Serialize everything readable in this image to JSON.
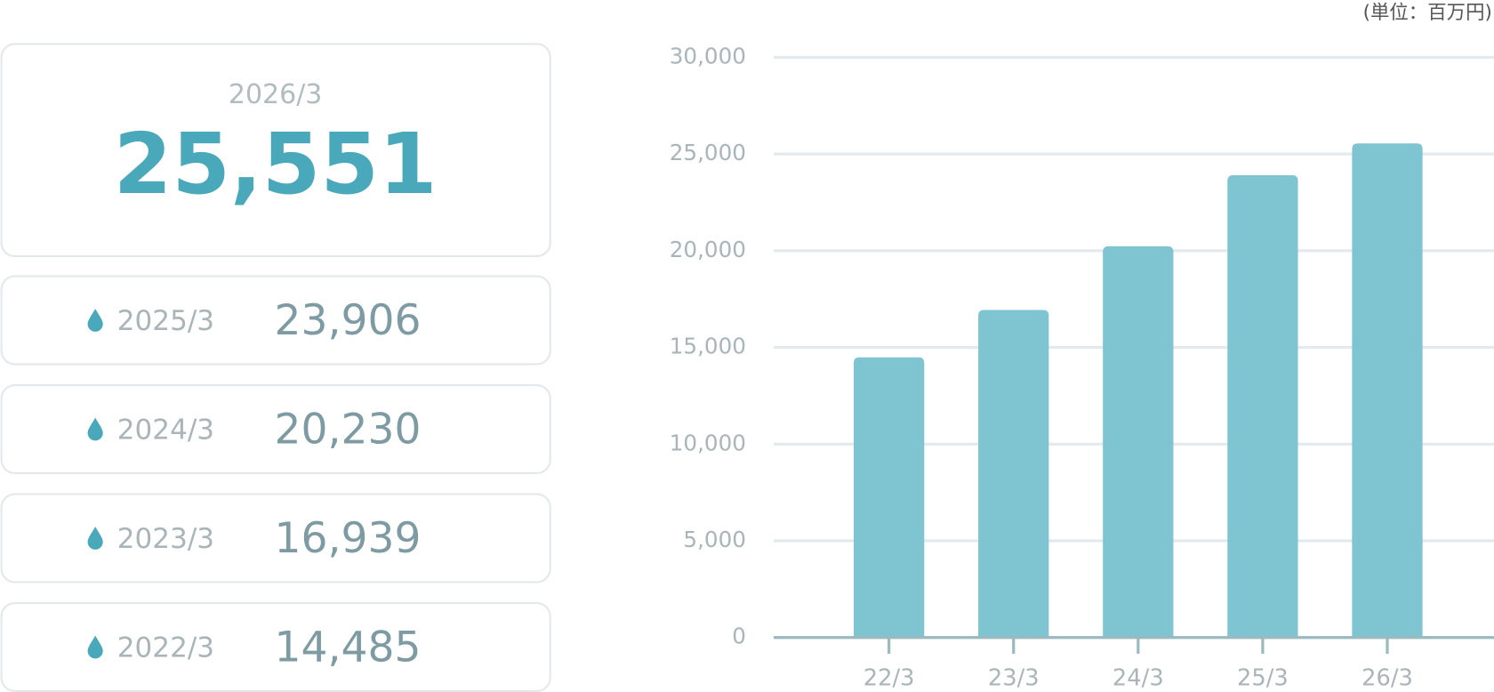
{
  "unit": "(単位：百万円)",
  "cards": [
    {
      "year": "2026/3",
      "value": "25,551"
    },
    {
      "year": "2025/3",
      "value": "23,906"
    },
    {
      "year": "2024/3",
      "value": "20,230"
    },
    {
      "year": "2023/3",
      "value": "16,939"
    },
    {
      "year": "2022/3",
      "value": "14,485"
    }
  ],
  "chart_data": {
    "type": "bar",
    "categories": [
      "22/3",
      "23/3",
      "24/3",
      "25/3",
      "26/3"
    ],
    "values": [
      14485,
      16939,
      20230,
      23906,
      25551
    ],
    "color": "#7fc4d1",
    "ylim": [
      0,
      30000
    ],
    "yticks": [
      0,
      {
        "value": 5000,
        "label": "5,000"
      },
      {
        "value": 10000,
        "label": "10,000"
      },
      {
        "value": 15000,
        "label": "15,000"
      },
      {
        "value": 20000,
        "label": "20,000"
      },
      {
        "value": 25000,
        "label": "25,000"
      },
      {
        "value": 30000,
        "label": "30,000"
      }
    ],
    "grid": true
  }
}
